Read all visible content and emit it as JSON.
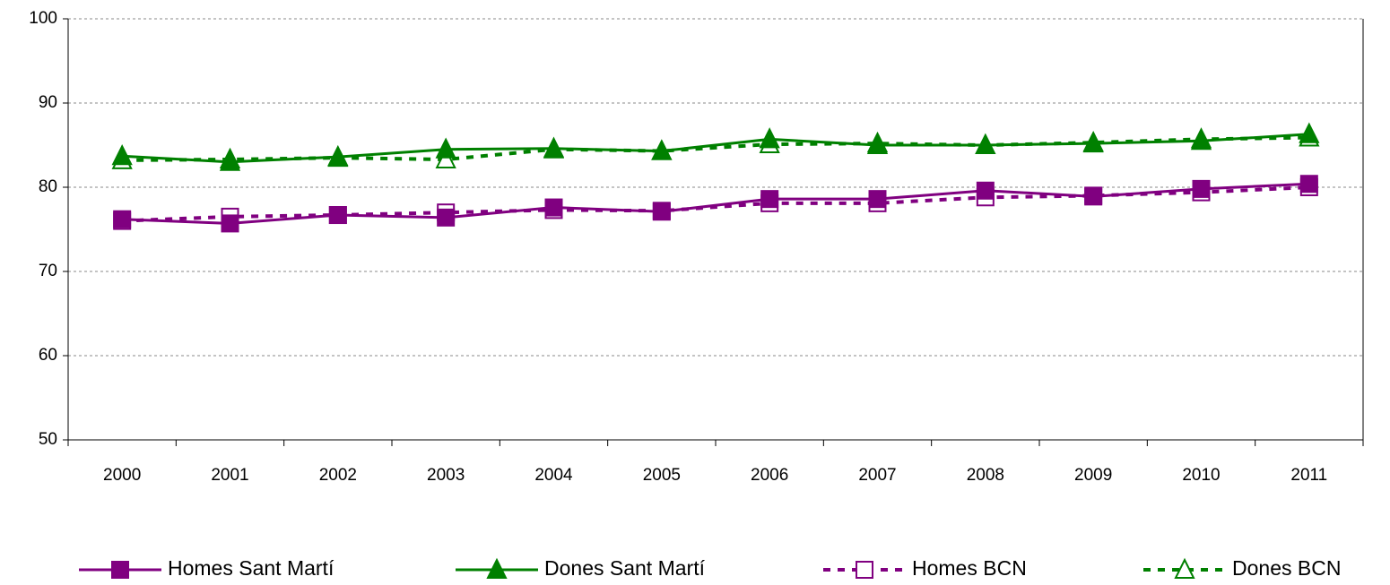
{
  "chart_data": {
    "type": "line",
    "categories": [
      "2000",
      "2001",
      "2002",
      "2003",
      "2004",
      "2005",
      "2006",
      "2007",
      "2008",
      "2009",
      "2010",
      "2011"
    ],
    "series": [
      {
        "name": "Homes Sant Martí",
        "color": "#800080",
        "marker": "square",
        "filled": true,
        "dashed": false,
        "values": [
          76.2,
          75.7,
          76.7,
          76.4,
          77.6,
          77.1,
          78.6,
          78.6,
          79.6,
          78.9,
          79.8,
          80.4
        ]
      },
      {
        "name": "Dones Sant Martí",
        "color": "#008000",
        "marker": "triangle",
        "filled": true,
        "dashed": false,
        "values": [
          83.7,
          83.0,
          83.6,
          84.5,
          84.6,
          84.3,
          85.7,
          85.0,
          85.0,
          85.2,
          85.5,
          86.3
        ]
      },
      {
        "name": "Homes BCN",
        "color": "#800080",
        "marker": "square",
        "filled": false,
        "dashed": true,
        "values": [
          76.0,
          76.5,
          76.7,
          77.0,
          77.3,
          77.2,
          78.1,
          78.1,
          78.8,
          79.0,
          79.4,
          80.0
        ]
      },
      {
        "name": "Dones BCN",
        "color": "#008000",
        "marker": "triangle",
        "filled": false,
        "dashed": true,
        "values": [
          83.2,
          83.3,
          83.5,
          83.3,
          84.5,
          84.3,
          85.1,
          85.2,
          85.0,
          85.3,
          85.7,
          85.9
        ]
      }
    ],
    "ylim": [
      50,
      100
    ],
    "yticks": [
      50,
      60,
      70,
      80,
      90,
      100
    ],
    "grid": true,
    "legend": "bottom"
  }
}
